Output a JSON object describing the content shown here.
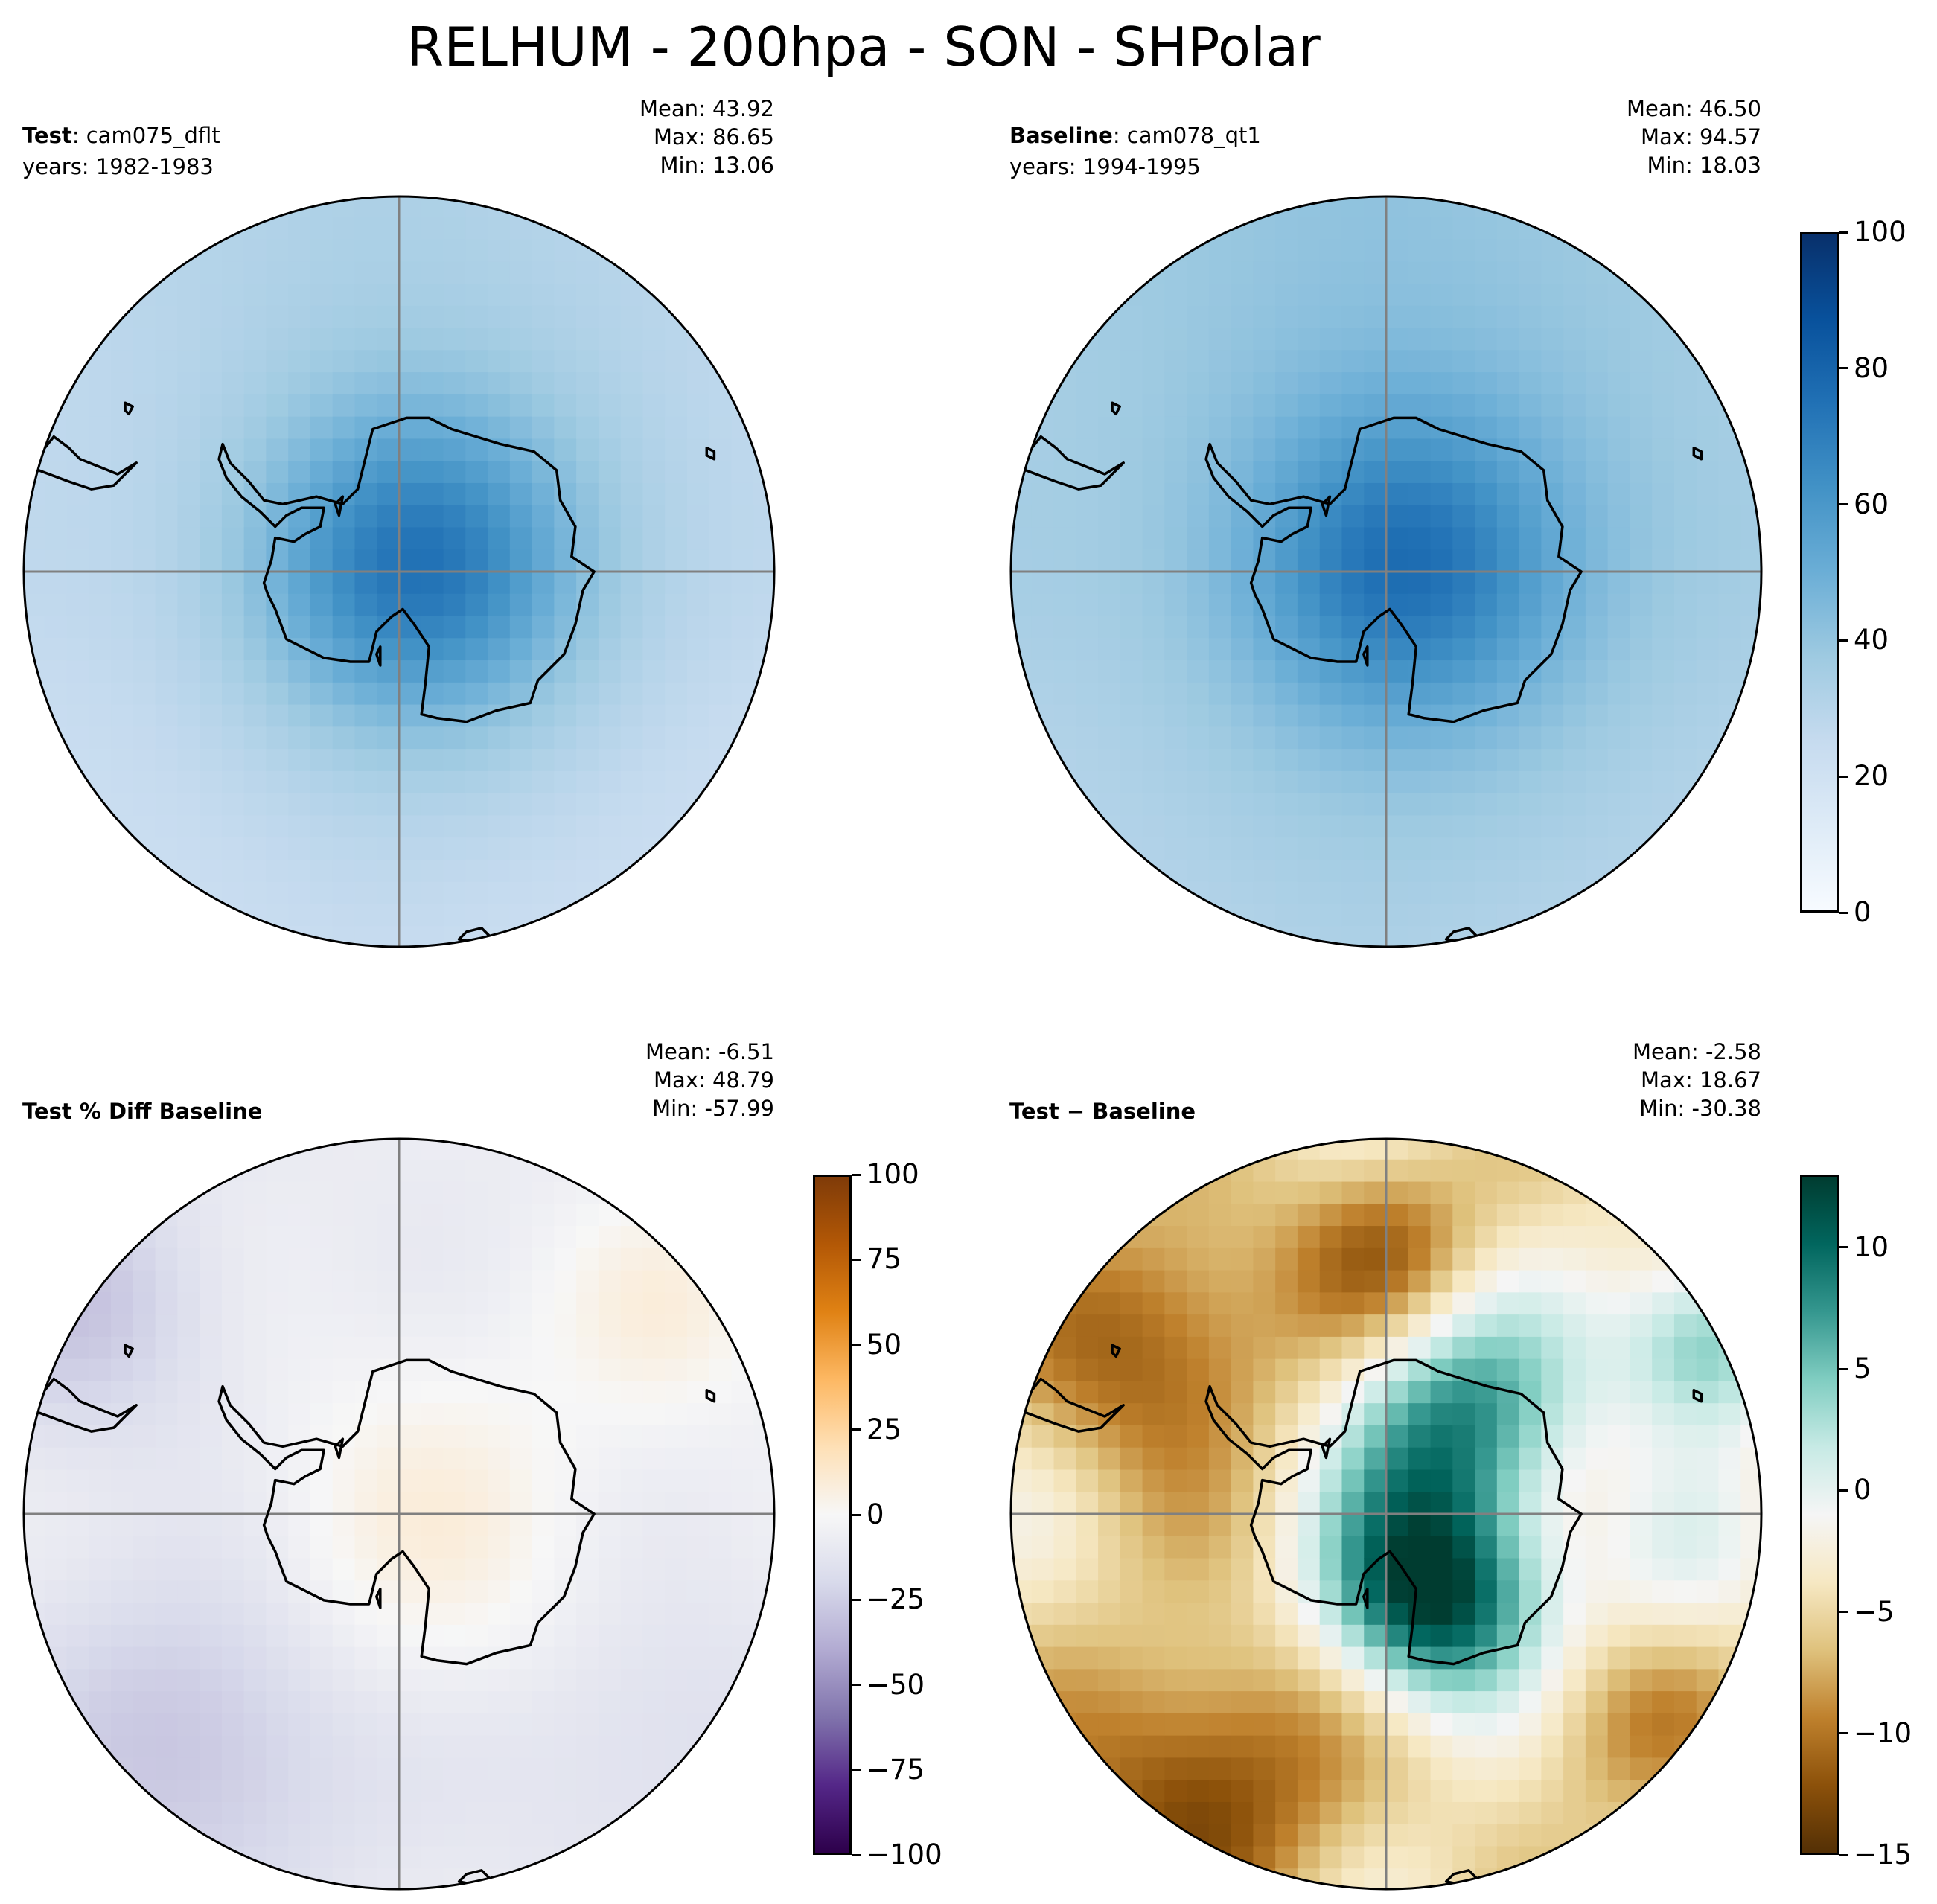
{
  "figure_title": "RELHUM - 200hpa - SON - SHPolar",
  "panels": [
    {
      "id": "test",
      "label_bold": "Test",
      "label_rest": ": cam075_dflt",
      "years": "years: 1982-1983",
      "stats": {
        "mean": "Mean: 43.92",
        "max": "Max: 86.65",
        "min": "Min: 13.06"
      },
      "field": {
        "center": 70,
        "edge": 28,
        "peak_shift": 0.08
      },
      "cmap": "blues",
      "norm": [
        0,
        100
      ]
    },
    {
      "id": "baseline",
      "label_bold": "Baseline",
      "label_rest": ": cam078_qt1",
      "years": "years: 1994-1995",
      "stats": {
        "mean": "Mean: 46.50",
        "max": "Max: 94.57",
        "min": "Min: 18.03"
      },
      "field": {
        "center": 72,
        "edge": 36,
        "peak_shift": 0.06
      },
      "cmap": "blues",
      "norm": [
        0,
        100
      ]
    },
    {
      "id": "pctdiff",
      "label_bold": "Test % Diff Baseline",
      "label_rest": "",
      "years": "",
      "stats": {
        "mean": "Mean: -6.51",
        "max": "Max: 48.79",
        "min": "Min: -57.99"
      },
      "cmap": "puor",
      "norm": [
        -100,
        100
      ]
    },
    {
      "id": "diff",
      "label_bold": "Test",
      "label_rest": " − Baseline",
      "years": "",
      "stats": {
        "mean": "Mean: -2.58",
        "max": "Max: 18.67",
        "min": "Min: -30.38"
      },
      "cmap": "brbg",
      "norm": [
        -15,
        13
      ]
    }
  ],
  "colorbars": {
    "main": {
      "ticks": [
        "100",
        "80",
        "60",
        "40",
        "20",
        "0"
      ],
      "min": 0,
      "max": 100
    },
    "pctdiff": {
      "ticks": [
        "100",
        "75",
        "50",
        "25",
        "0",
        "−25",
        "−50",
        "−75",
        "−100"
      ],
      "min": -100,
      "max": 100
    },
    "diff": {
      "ticks": [
        "10",
        "5",
        "0",
        "−5",
        "−10",
        "−15"
      ],
      "values": [
        10,
        5,
        0,
        -5,
        -10,
        -15
      ],
      "min": -15,
      "max": 13
    }
  },
  "colors": {
    "blues": [
      "#f7fbff",
      "#deebf7",
      "#c6dbef",
      "#9ecae1",
      "#6baed6",
      "#4292c6",
      "#2171b5",
      "#08519c",
      "#08306b"
    ],
    "puor": [
      "#2d004b",
      "#542788",
      "#8073ac",
      "#b2abd2",
      "#d8daeb",
      "#f7f7f7",
      "#fee0b6",
      "#fdb863",
      "#e08214",
      "#b35806",
      "#7f3b08"
    ],
    "brbg": [
      "#543005",
      "#8c510a",
      "#bf812d",
      "#dfc27d",
      "#f6e8c3",
      "#f5f5f5",
      "#c7eae5",
      "#80cdc1",
      "#35978f",
      "#01665e",
      "#003c30"
    ],
    "gridline": "#808080",
    "coast": "#000000"
  }
}
